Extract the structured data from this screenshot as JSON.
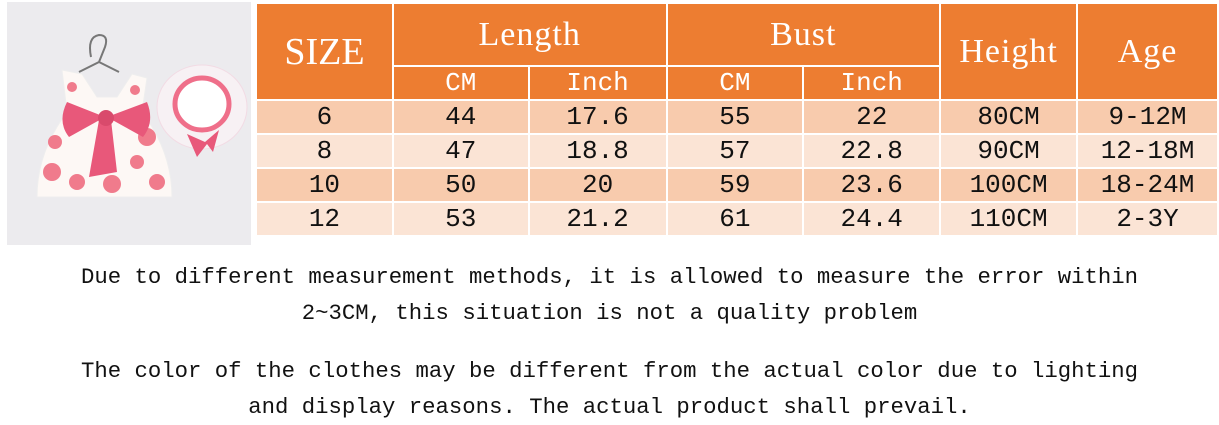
{
  "product_image": {
    "alt_semantic": "dress-with-hat-photo"
  },
  "table": {
    "header": {
      "size": "SIZE",
      "length": "Length",
      "bust": "Bust",
      "height": "Height",
      "age": "Age",
      "cm": "CM",
      "inch": "Inch"
    },
    "rows": [
      [
        "6",
        "44",
        "17.6",
        "55",
        "22",
        "80CM",
        "9-12M"
      ],
      [
        "8",
        "47",
        "18.8",
        "57",
        "22.8",
        "90CM",
        "12-18M"
      ],
      [
        "10",
        "50",
        "20",
        "59",
        "23.6",
        "100CM",
        "18-24M"
      ],
      [
        "12",
        "53",
        "21.2",
        "61",
        "24.4",
        "110CM",
        "2-3Y"
      ]
    ]
  },
  "notes": {
    "note1_line1": "Due to different measurement methods, it is allowed to measure the error within",
    "note1_line2": "2~3CM, this situation is not a quality problem",
    "note2_line1": "The color of the clothes may be different from the actual color due to lighting",
    "note2_line2": "and display reasons. The actual product shall prevail."
  },
  "colors": {
    "header": "#ed7d31",
    "row_odd": "#f8cbad",
    "row_even": "#fbe4d5",
    "bow": "#e8587a"
  }
}
